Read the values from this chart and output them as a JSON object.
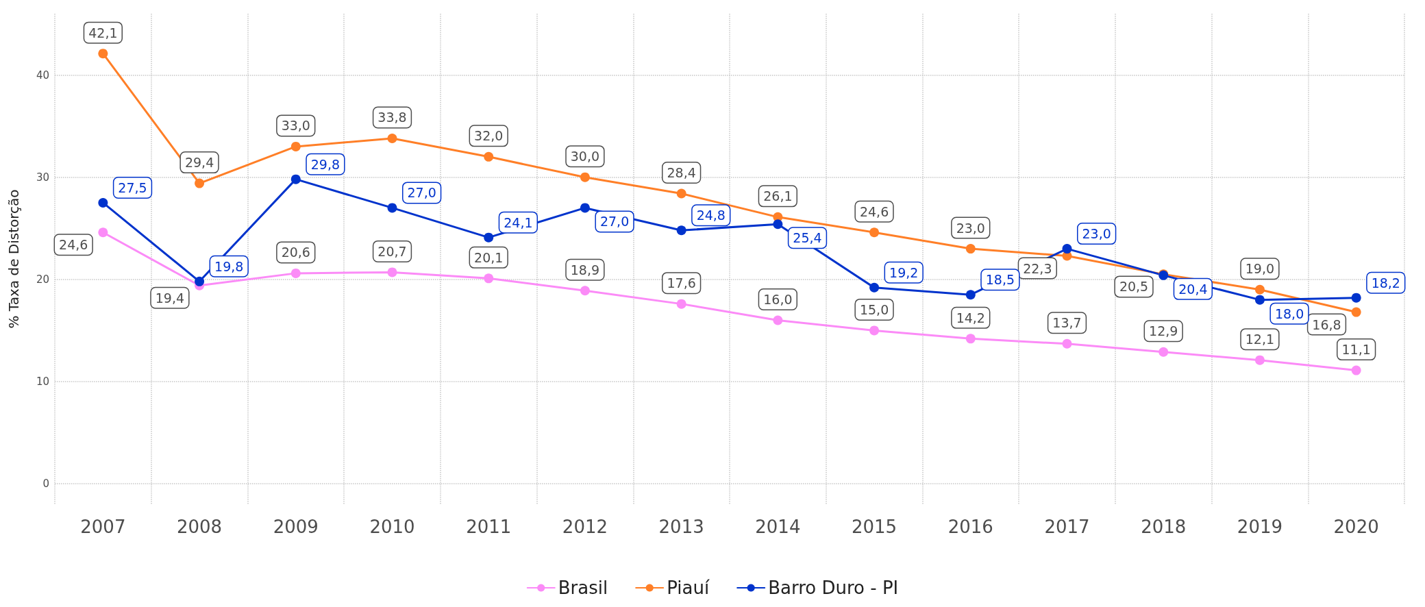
{
  "chart_data": {
    "type": "line",
    "ylabel": "% Taxa de Distorção",
    "categories": [
      "2007",
      "2008",
      "2009",
      "2010",
      "2011",
      "2012",
      "2013",
      "2014",
      "2015",
      "2016",
      "2017",
      "2018",
      "2019",
      "2020"
    ],
    "series": [
      {
        "name": "Brasil",
        "color": "#fb8bf7",
        "values": [
          24.6,
          19.4,
          20.6,
          20.7,
          20.1,
          18.9,
          17.6,
          16.0,
          15.0,
          14.2,
          13.7,
          12.9,
          12.1,
          11.1
        ],
        "value_labels": [
          "24,6",
          "19,4",
          "20,6",
          "20,7",
          "20,1",
          "18,9",
          "17,6",
          "16,0",
          "15,0",
          "14,2",
          "13,7",
          "12,9",
          "12,1",
          "11,1"
        ]
      },
      {
        "name": "Piauí",
        "color": "#ff7f27",
        "values": [
          42.1,
          29.4,
          33.0,
          33.8,
          32.0,
          30.0,
          28.4,
          26.1,
          24.6,
          23.0,
          22.3,
          20.5,
          19.0,
          16.8
        ],
        "value_labels": [
          "42,1",
          "29,4",
          "33,0",
          "33,8",
          "32,0",
          "30,0",
          "28,4",
          "26,1",
          "24,6",
          "23,0",
          "22,3",
          "20,5",
          "19,0",
          "16,8"
        ]
      },
      {
        "name": "Barro Duro - PI",
        "color": "#0033cc",
        "values": [
          27.5,
          19.8,
          29.8,
          27.0,
          24.1,
          27.0,
          24.8,
          25.4,
          19.2,
          18.5,
          23.0,
          20.4,
          18.0,
          18.2
        ],
        "value_labels": [
          "27,5",
          "19,8",
          "29,8",
          "27,0",
          "24,1",
          "27,0",
          "24,8",
          "25,4",
          "19,2",
          "18,5",
          "23,0",
          "20,4",
          "18,0",
          "18,2"
        ]
      }
    ],
    "ylim": [
      -2,
      46
    ],
    "yticks": [
      0,
      10,
      20,
      30,
      40
    ],
    "grid": true,
    "legend": "bottom",
    "marker": "circle",
    "line_style": "solid"
  }
}
